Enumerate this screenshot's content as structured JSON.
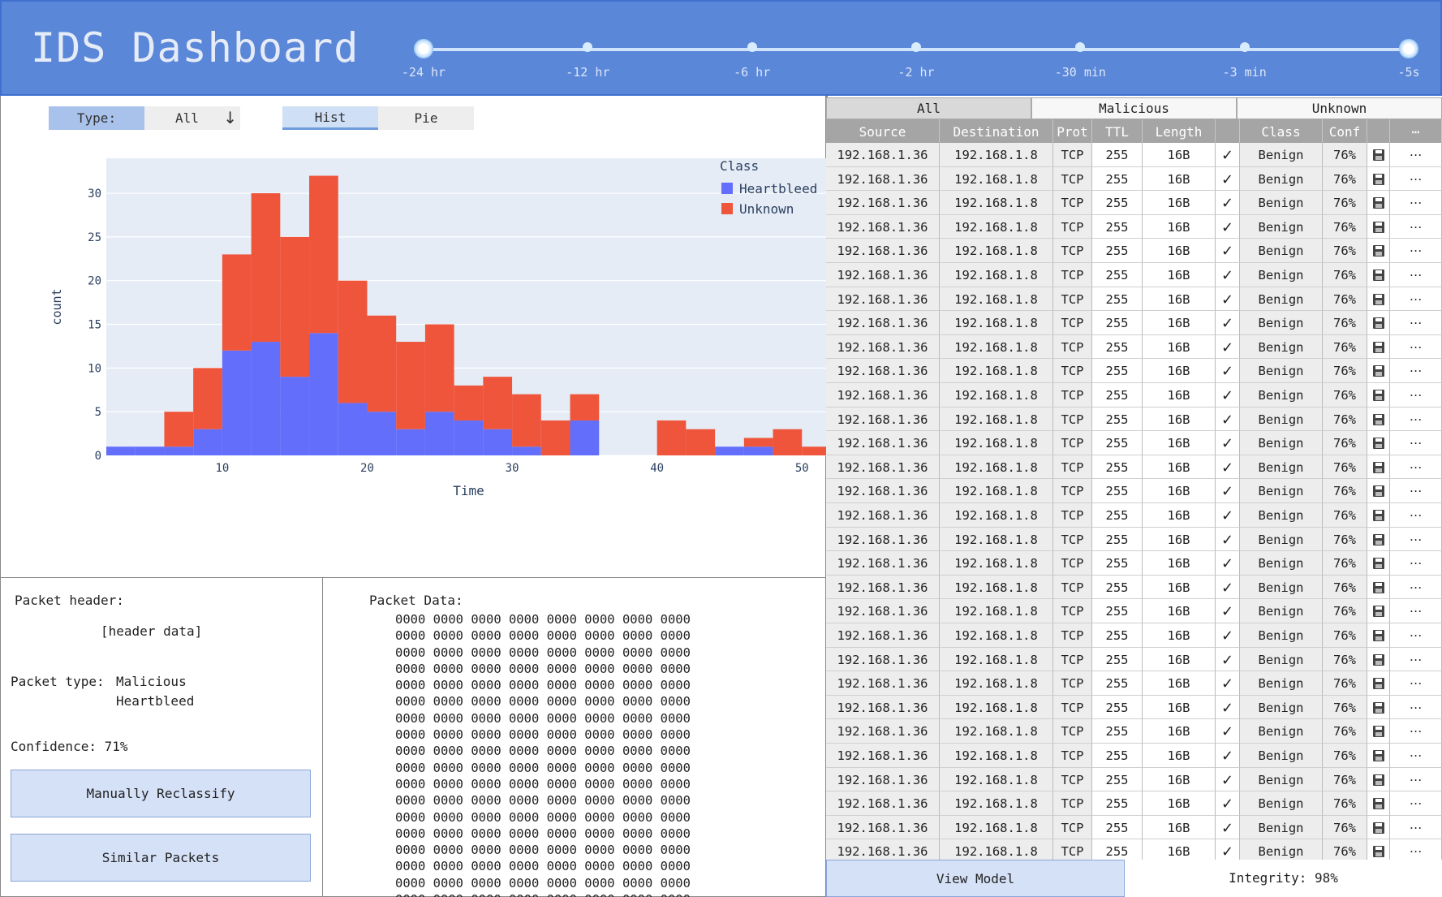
{
  "app": {
    "title": "IDS Dashboard",
    "accent_color": "#5b87d9"
  },
  "timeline": {
    "labels": [
      "-24 hr",
      "-12 hr",
      "-6 hr",
      "-2 hr",
      "-30 min",
      "-3 min",
      "-5s"
    ],
    "selected_range": [
      "-24 hr",
      "-5s"
    ]
  },
  "filters": {
    "type_label": "Type:",
    "type_value": "All",
    "view_tabs": [
      "Hist",
      "Pie"
    ],
    "active_view": "Hist"
  },
  "chart_data": {
    "type": "bar",
    "stacked": true,
    "xlabel": "Time",
    "ylabel": "count",
    "legend_title": "Class",
    "legend_position": "top-right",
    "xlim": [
      2,
      52
    ],
    "ylim": [
      0,
      34
    ],
    "x_ticks": [
      10,
      20,
      30,
      40,
      50
    ],
    "y_ticks": [
      0,
      5,
      10,
      15,
      20,
      25,
      30
    ],
    "bin_width": 2,
    "bin_starts": [
      2,
      4,
      6,
      8,
      10,
      12,
      14,
      16,
      18,
      20,
      22,
      24,
      26,
      28,
      30,
      32,
      34,
      36,
      38,
      40,
      42,
      44,
      46,
      48,
      50
    ],
    "series": [
      {
        "name": "Heartbleed",
        "color": "#636efa",
        "values": [
          1,
          1,
          1,
          3,
          12,
          13,
          9,
          14,
          6,
          5,
          3,
          5,
          4,
          3,
          1,
          0,
          4,
          0,
          0,
          0,
          0,
          1,
          1,
          0,
          0
        ]
      },
      {
        "name": "Unknown",
        "color": "#ef553b",
        "values": [
          0,
          0,
          4,
          7,
          11,
          17,
          16,
          18,
          14,
          11,
          10,
          10,
          4,
          6,
          6,
          4,
          3,
          0,
          0,
          4,
          3,
          0,
          1,
          3,
          1
        ]
      }
    ],
    "plot_bg": "#e5ecf6",
    "grid": true
  },
  "packet_header": {
    "label": "Packet header:",
    "value": "[header data]",
    "type_label": "Packet type:",
    "type_line1": "Malicious",
    "type_line2": "Heartbleed",
    "confidence": "Confidence: 71%",
    "reclassify_label": "Manually Reclassify",
    "similar_label": "Similar Packets"
  },
  "packet_data": {
    "label": "Packet Data:",
    "word": "0000",
    "words_per_line": 8,
    "line_count": 18
  },
  "table": {
    "filter_tabs": [
      "All",
      "Malicious",
      "Unknown"
    ],
    "active_filter": "All",
    "columns": [
      "Source",
      "Destination",
      "Prot",
      "TTL",
      "Length",
      "",
      "Class",
      "Conf",
      "",
      "⋯"
    ],
    "rows": [
      {
        "source": "192.168.1.36",
        "destination": "192.168.1.8",
        "prot": "TCP",
        "ttl": "255",
        "length": "16B",
        "check": "✓",
        "class": "Benign",
        "conf": "76%",
        "more": "⋯"
      },
      {
        "source": "192.168.1.36",
        "destination": "192.168.1.8",
        "prot": "TCP",
        "ttl": "255",
        "length": "16B",
        "check": "✓",
        "class": "Benign",
        "conf": "76%",
        "more": "⋯"
      },
      {
        "source": "192.168.1.36",
        "destination": "192.168.1.8",
        "prot": "TCP",
        "ttl": "255",
        "length": "16B",
        "check": "✓",
        "class": "Benign",
        "conf": "76%",
        "more": "⋯"
      },
      {
        "source": "192.168.1.36",
        "destination": "192.168.1.8",
        "prot": "TCP",
        "ttl": "255",
        "length": "16B",
        "check": "✓",
        "class": "Benign",
        "conf": "76%",
        "more": "⋯"
      },
      {
        "source": "192.168.1.36",
        "destination": "192.168.1.8",
        "prot": "TCP",
        "ttl": "255",
        "length": "16B",
        "check": "✓",
        "class": "Benign",
        "conf": "76%",
        "more": "⋯"
      },
      {
        "source": "192.168.1.36",
        "destination": "192.168.1.8",
        "prot": "TCP",
        "ttl": "255",
        "length": "16B",
        "check": "✓",
        "class": "Benign",
        "conf": "76%",
        "more": "⋯"
      },
      {
        "source": "192.168.1.36",
        "destination": "192.168.1.8",
        "prot": "TCP",
        "ttl": "255",
        "length": "16B",
        "check": "✓",
        "class": "Benign",
        "conf": "76%",
        "more": "⋯"
      },
      {
        "source": "192.168.1.36",
        "destination": "192.168.1.8",
        "prot": "TCP",
        "ttl": "255",
        "length": "16B",
        "check": "✓",
        "class": "Benign",
        "conf": "76%",
        "more": "⋯"
      },
      {
        "source": "192.168.1.36",
        "destination": "192.168.1.8",
        "prot": "TCP",
        "ttl": "255",
        "length": "16B",
        "check": "✓",
        "class": "Benign",
        "conf": "76%",
        "more": "⋯"
      },
      {
        "source": "192.168.1.36",
        "destination": "192.168.1.8",
        "prot": "TCP",
        "ttl": "255",
        "length": "16B",
        "check": "✓",
        "class": "Benign",
        "conf": "76%",
        "more": "⋯"
      },
      {
        "source": "192.168.1.36",
        "destination": "192.168.1.8",
        "prot": "TCP",
        "ttl": "255",
        "length": "16B",
        "check": "✓",
        "class": "Benign",
        "conf": "76%",
        "more": "⋯"
      },
      {
        "source": "192.168.1.36",
        "destination": "192.168.1.8",
        "prot": "TCP",
        "ttl": "255",
        "length": "16B",
        "check": "✓",
        "class": "Benign",
        "conf": "76%",
        "more": "⋯"
      },
      {
        "source": "192.168.1.36",
        "destination": "192.168.1.8",
        "prot": "TCP",
        "ttl": "255",
        "length": "16B",
        "check": "✓",
        "class": "Benign",
        "conf": "76%",
        "more": "⋯"
      },
      {
        "source": "192.168.1.36",
        "destination": "192.168.1.8",
        "prot": "TCP",
        "ttl": "255",
        "length": "16B",
        "check": "✓",
        "class": "Benign",
        "conf": "76%",
        "more": "⋯"
      },
      {
        "source": "192.168.1.36",
        "destination": "192.168.1.8",
        "prot": "TCP",
        "ttl": "255",
        "length": "16B",
        "check": "✓",
        "class": "Benign",
        "conf": "76%",
        "more": "⋯"
      },
      {
        "source": "192.168.1.36",
        "destination": "192.168.1.8",
        "prot": "TCP",
        "ttl": "255",
        "length": "16B",
        "check": "✓",
        "class": "Benign",
        "conf": "76%",
        "more": "⋯"
      },
      {
        "source": "192.168.1.36",
        "destination": "192.168.1.8",
        "prot": "TCP",
        "ttl": "255",
        "length": "16B",
        "check": "✓",
        "class": "Benign",
        "conf": "76%",
        "more": "⋯"
      },
      {
        "source": "192.168.1.36",
        "destination": "192.168.1.8",
        "prot": "TCP",
        "ttl": "255",
        "length": "16B",
        "check": "✓",
        "class": "Benign",
        "conf": "76%",
        "more": "⋯"
      },
      {
        "source": "192.168.1.36",
        "destination": "192.168.1.8",
        "prot": "TCP",
        "ttl": "255",
        "length": "16B",
        "check": "✓",
        "class": "Benign",
        "conf": "76%",
        "more": "⋯"
      },
      {
        "source": "192.168.1.36",
        "destination": "192.168.1.8",
        "prot": "TCP",
        "ttl": "255",
        "length": "16B",
        "check": "✓",
        "class": "Benign",
        "conf": "76%",
        "more": "⋯"
      },
      {
        "source": "192.168.1.36",
        "destination": "192.168.1.8",
        "prot": "TCP",
        "ttl": "255",
        "length": "16B",
        "check": "✓",
        "class": "Benign",
        "conf": "76%",
        "more": "⋯"
      },
      {
        "source": "192.168.1.36",
        "destination": "192.168.1.8",
        "prot": "TCP",
        "ttl": "255",
        "length": "16B",
        "check": "✓",
        "class": "Benign",
        "conf": "76%",
        "more": "⋯"
      },
      {
        "source": "192.168.1.36",
        "destination": "192.168.1.8",
        "prot": "TCP",
        "ttl": "255",
        "length": "16B",
        "check": "✓",
        "class": "Benign",
        "conf": "76%",
        "more": "⋯"
      },
      {
        "source": "192.168.1.36",
        "destination": "192.168.1.8",
        "prot": "TCP",
        "ttl": "255",
        "length": "16B",
        "check": "✓",
        "class": "Benign",
        "conf": "76%",
        "more": "⋯"
      },
      {
        "source": "192.168.1.36",
        "destination": "192.168.1.8",
        "prot": "TCP",
        "ttl": "255",
        "length": "16B",
        "check": "✓",
        "class": "Benign",
        "conf": "76%",
        "more": "⋯"
      },
      {
        "source": "192.168.1.36",
        "destination": "192.168.1.8",
        "prot": "TCP",
        "ttl": "255",
        "length": "16B",
        "check": "✓",
        "class": "Benign",
        "conf": "76%",
        "more": "⋯"
      },
      {
        "source": "192.168.1.36",
        "destination": "192.168.1.8",
        "prot": "TCP",
        "ttl": "255",
        "length": "16B",
        "check": "✓",
        "class": "Benign",
        "conf": "76%",
        "more": "⋯"
      },
      {
        "source": "192.168.1.36",
        "destination": "192.168.1.8",
        "prot": "TCP",
        "ttl": "255",
        "length": "16B",
        "check": "✓",
        "class": "Benign",
        "conf": "76%",
        "more": "⋯"
      },
      {
        "source": "192.168.1.36",
        "destination": "192.168.1.8",
        "prot": "TCP",
        "ttl": "255",
        "length": "16B",
        "check": "✓",
        "class": "Benign",
        "conf": "76%",
        "more": "⋯"
      },
      {
        "source": "192.168.1.36",
        "destination": "192.168.1.8",
        "prot": "TCP",
        "ttl": "255",
        "length": "16B",
        "check": "✓",
        "class": "Benign",
        "conf": "76%",
        "more": "⋯"
      },
      {
        "source": "192.168.1.36",
        "destination": "192.168.1.8",
        "prot": "TCP",
        "ttl": "255",
        "length": "16B",
        "check": "✓",
        "class": "Benign",
        "conf": "76%",
        "more": "⋯"
      }
    ],
    "row_save_icon": "save-icon"
  },
  "footer": {
    "view_model_label": "View Model",
    "integrity": "Integrity: 98%"
  }
}
